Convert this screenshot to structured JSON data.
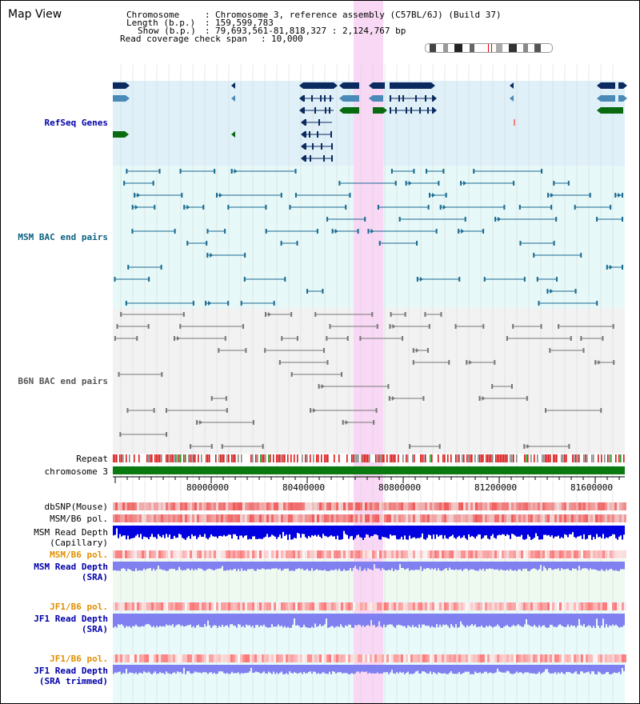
{
  "view_title": "Map View",
  "info": {
    "chromosome_label": "Chromosome",
    "chromosome_value": "Chromosome 3, reference assembly (C57BL/6J) (Build 37)",
    "length_label": "Length (b.p.)",
    "length_value": "159,599,783",
    "show_label": "Show (b.p.)",
    "show_value": "79,693,561-81,818,327 : 2,124,767 bp",
    "coverage_label": "Read coverage check span",
    "coverage_value": "10,000"
  },
  "tracks": {
    "refseq": "RefSeq Genes",
    "msm_bac": "MSM BAC end pairs",
    "b6n_bac": "B6N BAC end pairs",
    "repeat": "Repeat",
    "chromosome": "chromosome 3",
    "dbsnp": "dbSNP(Mouse)",
    "msm_b6_pol_1": "MSM/B6 pol.",
    "msm_depth_cap_1": "MSM Read Depth",
    "msm_depth_cap_2": "(Capillary)",
    "msm_b6_pol_2": "MSM/B6 pol.",
    "msm_depth_sra_1": "MSM Read Depth",
    "msm_depth_sra_2": "(SRA)",
    "jf1_b6_pol_1": "JF1/B6 pol.",
    "jf1_depth_sra_1": "JF1 Read Depth",
    "jf1_depth_sra_2": "(SRA)",
    "jf1_b6_pol_2": "JF1/B6 pol.",
    "jf1_depth_trim_1": "JF1 Read Depth",
    "jf1_depth_trim_2": "(SRA trimmed)"
  },
  "axis": {
    "ticks": [
      "80000000",
      "80400000",
      "80800000",
      "81200000",
      "81600000"
    ]
  },
  "colors": {
    "refseq_band": "#dff0f8",
    "msm_bac_band": "#e6f8f8",
    "b6n_bac_band": "#f2f2f2",
    "highlight": "#f8d8f4",
    "navy": "#0b2a60",
    "steel": "#4a8ab8",
    "green": "#0a6a10",
    "teal": "#1a6a90",
    "gray": "#777777",
    "blue_label": "#0000aa",
    "orange_label": "#e09000",
    "teal_label": "#0a6080",
    "depth_blue": "#0000e0",
    "depth_light": "#8080f0"
  }
}
